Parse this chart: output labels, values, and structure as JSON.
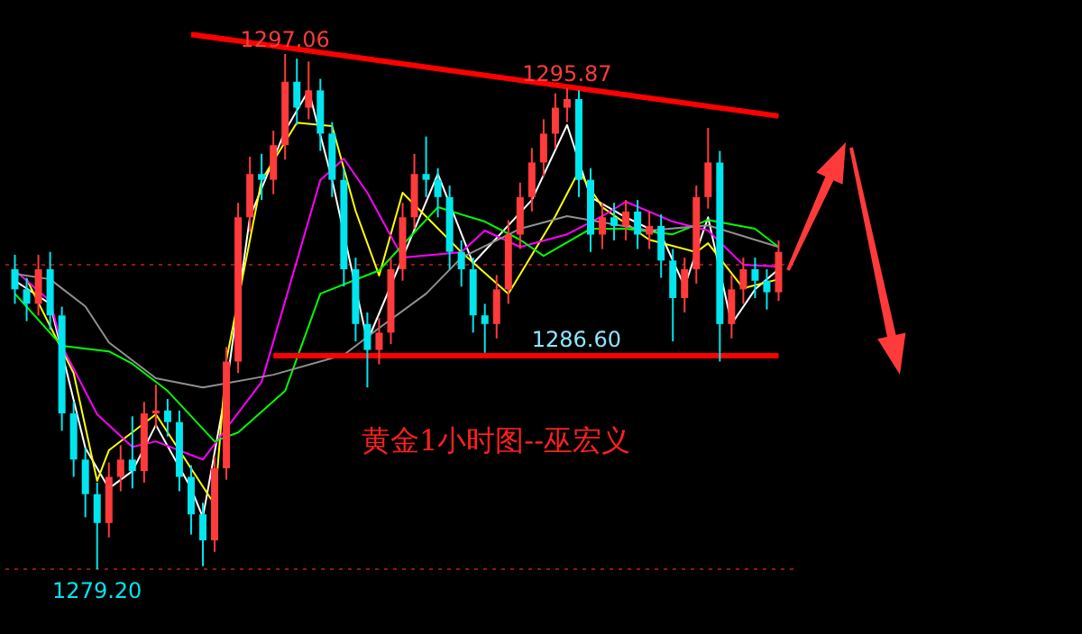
{
  "chart_data": {
    "type": "candlestick",
    "title": "黄金1小时图--巫宏义",
    "tick_labels": false,
    "categories": [
      null,
      null,
      null,
      null,
      null,
      null,
      null,
      null,
      null,
      null,
      null,
      null,
      null,
      null,
      null,
      null,
      null,
      null,
      null,
      null,
      null,
      null,
      null,
      null,
      null,
      null,
      null,
      null,
      null,
      null,
      null,
      null,
      null,
      null,
      null,
      null,
      null,
      null,
      null,
      null,
      null,
      null,
      null,
      null,
      null,
      null,
      null,
      null,
      null,
      null,
      null,
      null,
      null,
      null,
      null,
      null,
      null,
      null,
      null,
      null,
      null,
      null,
      null,
      null,
      null,
      null
    ],
    "ohlc": [
      [
        1289.6,
        1290.1,
        1288.4,
        1288.9
      ],
      [
        1288.9,
        1289.3,
        1287.8,
        1288.4
      ],
      [
        1288.4,
        1290.1,
        1288.0,
        1289.6
      ],
      [
        1289.6,
        1290.2,
        1287.5,
        1288.0
      ],
      [
        1288.0,
        1288.3,
        1284.0,
        1284.6
      ],
      [
        1284.6,
        1285.0,
        1282.4,
        1283.0
      ],
      [
        1283.0,
        1283.4,
        1281.0,
        1281.8
      ],
      [
        1281.8,
        1282.2,
        1279.2,
        1280.8
      ],
      [
        1280.8,
        1282.9,
        1280.3,
        1282.4
      ],
      [
        1282.4,
        1283.5,
        1281.9,
        1283.0
      ],
      [
        1283.0,
        1284.5,
        1282.0,
        1282.6
      ],
      [
        1282.6,
        1285.0,
        1282.2,
        1284.6
      ],
      [
        1284.6,
        1285.6,
        1284.1,
        1284.7
      ],
      [
        1284.7,
        1285.1,
        1283.8,
        1284.3
      ],
      [
        1284.3,
        1284.7,
        1281.9,
        1282.4
      ],
      [
        1282.4,
        1282.8,
        1280.4,
        1281.1
      ],
      [
        1281.1,
        1281.5,
        1279.3,
        1280.2
      ],
      [
        1280.2,
        1283.1,
        1279.8,
        1282.7
      ],
      [
        1282.7,
        1286.9,
        1282.3,
        1286.4
      ],
      [
        1286.4,
        1291.9,
        1286.0,
        1291.4
      ],
      [
        1291.4,
        1293.5,
        1290.9,
        1292.9
      ],
      [
        1292.9,
        1293.6,
        1292.0,
        1292.7
      ],
      [
        1292.7,
        1294.4,
        1292.2,
        1293.9
      ],
      [
        1293.9,
        1297.06,
        1293.4,
        1296.1
      ],
      [
        1296.1,
        1296.9,
        1294.6,
        1295.2
      ],
      [
        1295.2,
        1296.8,
        1294.8,
        1295.8
      ],
      [
        1295.8,
        1296.2,
        1293.7,
        1294.3
      ],
      [
        1294.3,
        1294.7,
        1292.1,
        1292.7
      ],
      [
        1292.7,
        1293.1,
        1289.0,
        1289.6
      ],
      [
        1289.6,
        1290.0,
        1287.1,
        1287.7
      ],
      [
        1287.7,
        1288.1,
        1285.5,
        1286.8
      ],
      [
        1286.8,
        1287.9,
        1286.3,
        1287.4
      ],
      [
        1287.4,
        1290.0,
        1287.0,
        1289.6
      ],
      [
        1289.6,
        1291.9,
        1289.2,
        1291.4
      ],
      [
        1291.4,
        1293.6,
        1291.0,
        1292.9
      ],
      [
        1292.9,
        1294.2,
        1292.1,
        1292.7
      ],
      [
        1292.7,
        1293.1,
        1291.4,
        1292.1
      ],
      [
        1292.1,
        1292.5,
        1289.6,
        1290.2
      ],
      [
        1290.2,
        1290.6,
        1289.0,
        1289.6
      ],
      [
        1289.6,
        1290.0,
        1287.4,
        1288.0
      ],
      [
        1288.0,
        1288.4,
        1286.7,
        1287.7
      ],
      [
        1287.7,
        1289.4,
        1287.2,
        1288.9
      ],
      [
        1288.9,
        1291.3,
        1288.4,
        1290.8
      ],
      [
        1290.8,
        1292.6,
        1290.3,
        1292.1
      ],
      [
        1292.1,
        1293.8,
        1291.6,
        1293.3
      ],
      [
        1293.3,
        1294.8,
        1292.8,
        1294.3
      ],
      [
        1294.3,
        1295.7,
        1293.8,
        1295.2
      ],
      [
        1295.2,
        1295.87,
        1294.7,
        1295.5
      ],
      [
        1295.5,
        1295.8,
        1292.1,
        1292.7
      ],
      [
        1292.7,
        1293.1,
        1290.2,
        1290.8
      ],
      [
        1290.8,
        1291.9,
        1290.3,
        1291.4
      ],
      [
        1291.4,
        1291.9,
        1290.6,
        1291.1
      ],
      [
        1291.1,
        1292.0,
        1290.6,
        1291.6
      ],
      [
        1291.6,
        1292.0,
        1290.3,
        1290.8
      ],
      [
        1290.8,
        1291.6,
        1290.3,
        1291.1
      ],
      [
        1291.1,
        1291.5,
        1289.3,
        1289.9
      ],
      [
        1289.9,
        1290.3,
        1287.1,
        1288.6
      ],
      [
        1288.6,
        1290.0,
        1288.1,
        1289.6
      ],
      [
        1289.6,
        1292.5,
        1289.1,
        1292.1
      ],
      [
        1292.1,
        1294.5,
        1291.7,
        1293.3
      ],
      [
        1293.3,
        1293.7,
        1286.4,
        1287.7
      ],
      [
        1287.7,
        1289.4,
        1287.2,
        1288.9
      ],
      [
        1288.9,
        1290.0,
        1288.4,
        1289.6
      ],
      [
        1289.6,
        1290.0,
        1288.6,
        1289.2
      ],
      [
        1289.2,
        1289.6,
        1288.2,
        1288.8
      ],
      [
        1288.8,
        1290.6,
        1288.5,
        1290.2
      ]
    ],
    "colors": [
      "#00e5ee",
      "#00e5ee",
      "#ff3b3b",
      "#00e5ee",
      "#00e5ee",
      "#00e5ee",
      "#00e5ee",
      "#00e5ee",
      "#ff3b3b",
      "#ff3b3b",
      "#00e5ee",
      "#ff3b3b",
      "#ff3b3b",
      "#00e5ee",
      "#00e5ee",
      "#00e5ee",
      "#00e5ee",
      "#ff3b3b",
      "#ff3b3b",
      "#ff3b3b",
      "#ff3b3b",
      "#00e5ee",
      "#ff3b3b",
      "#ff3b3b",
      "#00e5ee",
      "#ff3b3b",
      "#00e5ee",
      "#00e5ee",
      "#00e5ee",
      "#00e5ee",
      "#00e5ee",
      "#ff3b3b",
      "#ff3b3b",
      "#ff3b3b",
      "#ff3b3b",
      "#00e5ee",
      "#00e5ee",
      "#00e5ee",
      "#00e5ee",
      "#00e5ee",
      "#00e5ee",
      "#ff3b3b",
      "#ff3b3b",
      "#ff3b3b",
      "#ff3b3b",
      "#ff3b3b",
      "#ff3b3b",
      "#ff3b3b",
      "#00e5ee",
      "#00e5ee",
      "#ff3b3b",
      "#00e5ee",
      "#ff3b3b",
      "#00e5ee",
      "#ff3b3b",
      "#00e5ee",
      "#00e5ee",
      "#ff3b3b",
      "#ff3b3b",
      "#ff3b3b",
      "#00e5ee",
      "#ff3b3b",
      "#ff3b3b",
      "#00e5ee",
      "#00e5ee",
      "#ff3b3b"
    ],
    "series": [
      {
        "type": "line",
        "color": "#ffffff",
        "values": [
          1289.2,
          null,
          null,
          1288.4,
          null,
          null,
          1283.4,
          null,
          1282.0,
          null,
          1282.6,
          null,
          1284.2,
          null,
          null,
          1282.0,
          1281.0,
          null,
          1285.5,
          null,
          1291.4,
          null,
          null,
          1294.4,
          null,
          1295.8,
          null,
          1292.7,
          null,
          null,
          1287.1,
          null,
          null,
          null,
          null,
          null,
          1292.9,
          null,
          null,
          1289.8,
          null,
          null,
          null,
          null,
          1292.0,
          null,
          null,
          1294.6,
          null,
          1292.1,
          null,
          null,
          1291.4,
          null,
          null,
          1290.8,
          null,
          1289.0,
          null,
          1291.4,
          null,
          1287.7,
          null,
          1288.9,
          null,
          1289.6
        ]
      },
      {
        "type": "line",
        "color": "#ffff00",
        "values": [
          null,
          1289.25,
          null,
          null,
          null,
          1286.0,
          null,
          1282.26,
          1283.32,
          null,
          null,
          null,
          1284.57,
          null,
          null,
          1282.69,
          null,
          1281.44,
          1286.44,
          null,
          null,
          1292.69,
          null,
          null,
          1294.68,
          null,
          null,
          1294.56,
          null,
          1291.62,
          null,
          1289.38,
          null,
          1292.25,
          null,
          null,
          null,
          null,
          1290.19,
          null,
          null,
          null,
          1288.75,
          null,
          null,
          null,
          1291.44,
          null,
          1293.0,
          null,
          1291.75,
          null,
          null,
          null,
          1290.62,
          null,
          null,
          null,
          1290.19,
          1290.5,
          null,
          null,
          1288.94,
          null,
          null,
          1289.25
        ]
      },
      {
        "type": "line",
        "color": "#ff00ff",
        "values": [
          1289.56,
          null,
          null,
          1288.5,
          1286.94,
          null,
          null,
          1284.57,
          null,
          null,
          1283.44,
          null,
          1283.63,
          null,
          null,
          null,
          1283.0,
          null,
          null,
          null,
          null,
          1285.69,
          null,
          null,
          null,
          null,
          1292.69,
          null,
          1293.43,
          null,
          1292.25,
          null,
          null,
          1290.0,
          null,
          null,
          null,
          null,
          1290.19,
          null,
          1290.94,
          null,
          null,
          1290.37,
          null,
          null,
          null,
          1290.81,
          null,
          null,
          1291.44,
          null,
          1291.94,
          null,
          null,
          null,
          1291.25,
          null,
          null,
          1290.94,
          null,
          null,
          1289.75,
          null,
          null,
          1289.69
        ]
      },
      {
        "type": "line",
        "color": "#00ff00",
        "values": [
          1288.75,
          null,
          null,
          null,
          1286.94,
          null,
          null,
          null,
          1286.75,
          null,
          1286.32,
          null,
          null,
          1285.38,
          null,
          null,
          null,
          1283.63,
          null,
          1283.94,
          null,
          null,
          null,
          1285.38,
          null,
          null,
          1288.75,
          null,
          null,
          null,
          null,
          1289.56,
          null,
          null,
          null,
          null,
          1291.75,
          null,
          null,
          null,
          1291.25,
          null,
          null,
          1290.62,
          null,
          1290.06,
          null,
          null,
          null,
          1291.0,
          null,
          null,
          1291.0,
          null,
          null,
          null,
          1290.81,
          null,
          null,
          1291.31,
          null,
          null,
          null,
          1291.0,
          null,
          1290.37
        ]
      },
      {
        "type": "line",
        "color": "#909090",
        "values": [
          1289.44,
          null,
          null,
          1289.25,
          null,
          null,
          1288.31,
          null,
          1287.06,
          null,
          null,
          null,
          1285.82,
          null,
          null,
          null,
          1285.5,
          null,
          null,
          null,
          null,
          null,
          1285.94,
          null,
          null,
          null,
          null,
          null,
          1286.63,
          null,
          null,
          1287.56,
          null,
          null,
          null,
          1288.75,
          null,
          null,
          1290.0,
          null,
          null,
          null,
          null,
          1291.0,
          null,
          null,
          null,
          1291.44,
          null,
          null,
          null,
          null,
          null,
          null,
          1290.94,
          null,
          null,
          null,
          null,
          1291.12,
          null,
          null,
          null,
          1290.62,
          null,
          1290.37
        ]
      },
      {
        "type": "line",
        "color": "#ff0000",
        "values": [
          null,
          null,
          null,
          null,
          null,
          null,
          null,
          null,
          null,
          null,
          null,
          null,
          null,
          null,
          null,
          1297.74,
          null,
          null,
          null,
          null,
          null,
          null,
          null,
          null,
          null,
          null,
          null,
          null,
          null,
          null,
          null,
          null,
          null,
          null,
          null,
          null,
          null,
          null,
          null,
          null,
          null,
          null,
          null,
          null,
          null,
          null,
          null,
          null,
          null,
          null,
          null,
          null,
          null,
          null,
          null,
          null,
          null,
          null,
          null,
          null,
          null,
          null,
          null,
          null,
          null,
          1294.91
        ]
      },
      {
        "type": "line",
        "color": "#ff0000",
        "values": [
          null,
          null,
          null,
          null,
          null,
          null,
          null,
          null,
          null,
          null,
          null,
          null,
          null,
          null,
          null,
          null,
          null,
          null,
          null,
          null,
          null,
          null,
          1286.6,
          null,
          null,
          null,
          null,
          null,
          null,
          null,
          null,
          null,
          null,
          null,
          null,
          null,
          null,
          null,
          null,
          null,
          null,
          null,
          null,
          null,
          null,
          null,
          null,
          null,
          null,
          null,
          null,
          null,
          null,
          null,
          null,
          null,
          null,
          null,
          null,
          null,
          null,
          null,
          null,
          null,
          null,
          1286.6
        ]
      }
    ],
    "ref_lines": [
      {
        "axis": "y",
        "value": 1289.75,
        "color": "#8b1a1a",
        "line_style": "dotted"
      },
      {
        "axis": "y",
        "value": 1279.2,
        "color": "#8b1a1a",
        "line_style": "dotted"
      }
    ],
    "annotations": [
      {
        "text": "1297.06",
        "y": 1297.06
      },
      {
        "text": "1295.87",
        "y": 1295.87
      },
      {
        "text": "1286.60",
        "y": 1286.6
      },
      {
        "text": "1279.20",
        "y": 1279.2
      }
    ]
  }
}
